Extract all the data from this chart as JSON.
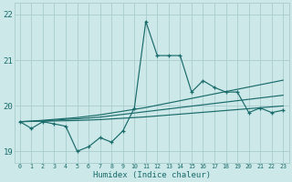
{
  "title": "",
  "xlabel": "Humidex (Indice chaleur)",
  "background_color": "#cce8e8",
  "grid_color": "#aacccc",
  "line_color": "#1a6b6b",
  "x_values": [
    0,
    1,
    2,
    3,
    4,
    5,
    6,
    7,
    8,
    9,
    10,
    11,
    12,
    13,
    14,
    15,
    16,
    17,
    18,
    19,
    20,
    21,
    22,
    23
  ],
  "y_main": [
    19.65,
    19.5,
    19.65,
    19.6,
    19.55,
    19.0,
    19.1,
    19.3,
    19.2,
    19.45,
    19.95,
    21.85,
    21.1,
    21.1,
    21.1,
    20.3,
    20.55,
    20.4,
    20.3,
    20.3,
    19.85,
    19.95,
    19.85,
    19.9
  ],
  "y_trend1": [
    19.65,
    19.66,
    19.68,
    19.7,
    19.72,
    19.74,
    19.77,
    19.8,
    19.84,
    19.88,
    19.92,
    19.96,
    20.01,
    20.06,
    20.11,
    20.16,
    20.21,
    20.26,
    20.31,
    20.36,
    20.41,
    20.46,
    20.51,
    20.56
  ],
  "y_trend2": [
    19.65,
    19.66,
    19.67,
    19.68,
    19.7,
    19.71,
    19.73,
    19.75,
    19.78,
    19.81,
    19.84,
    19.87,
    19.9,
    19.93,
    19.96,
    19.99,
    20.02,
    20.05,
    20.08,
    20.11,
    20.14,
    20.17,
    20.2,
    20.23
  ],
  "y_trend3": [
    19.65,
    19.655,
    19.66,
    19.665,
    19.67,
    19.675,
    19.685,
    19.695,
    19.71,
    19.725,
    19.74,
    19.755,
    19.775,
    19.795,
    19.815,
    19.835,
    19.855,
    19.875,
    19.895,
    19.915,
    19.935,
    19.955,
    19.975,
    19.995
  ],
  "ylim": [
    18.75,
    22.25
  ],
  "yticks": [
    19,
    20,
    21,
    22
  ],
  "xlim": [
    -0.5,
    23.5
  ],
  "xticks": [
    0,
    1,
    2,
    3,
    4,
    5,
    6,
    7,
    8,
    9,
    10,
    11,
    12,
    13,
    14,
    15,
    16,
    17,
    18,
    19,
    20,
    21,
    22,
    23
  ]
}
